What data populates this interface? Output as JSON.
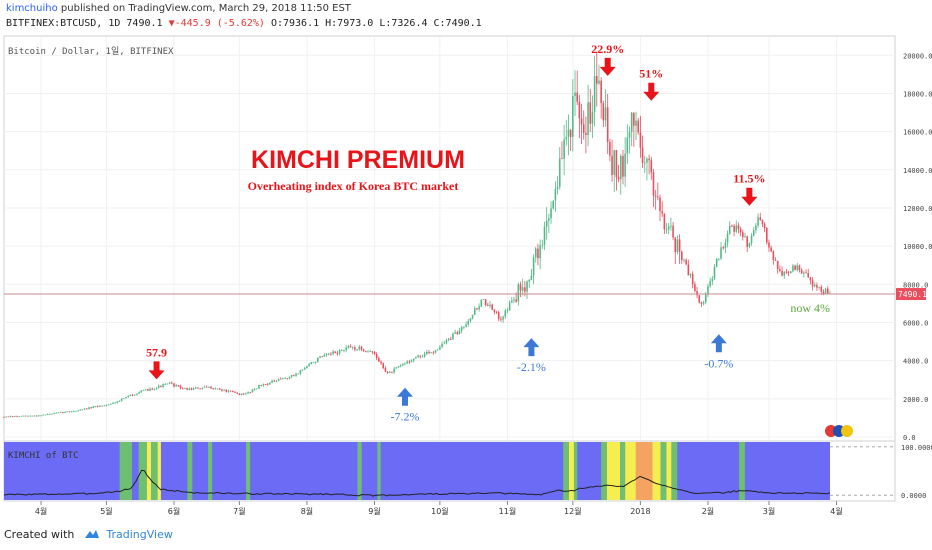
{
  "header": {
    "author": "kimchuiho",
    "published_text": "published on TradingView.com, March 29, 2018 11:50 EST",
    "symbol_line": "BITFINEX:BTCUSD, 1D 7490.1",
    "change_arrow": "▼",
    "change_text": "-445.9 (-5.62%)",
    "ohlc_text": "O:7936.1 H:7973.0 L:7326.4 C:7490.1"
  },
  "footer": {
    "created_with": "Created with",
    "brand": "TradingView"
  },
  "colors": {
    "up": "#53b987",
    "down": "#eb4d5c",
    "annotation_red": "#e8141a",
    "annotation_blue": "#3c78d8",
    "annotation_green": "#5aa83c",
    "zone_blue": "#6b6bf5",
    "zone_green": "#6fbf73",
    "zone_yellow": "#f6ee4e",
    "zone_orange": "#f4a460",
    "price_line": "#c98a8a"
  },
  "chart_data": {
    "type": "candlestick",
    "series_label": "Bitcoin / Dollar, 1일, BITFINEX",
    "title": "KIMCHI PREMIUM",
    "subtitle": "Overheating index of Korea BTC market",
    "x_labels": [
      "4월",
      "5월",
      "6월",
      "7월",
      "8월",
      "9월",
      "10월",
      "11월",
      "12월",
      "2018",
      "2월",
      "3월",
      "4월"
    ],
    "y_ticks": [
      "20000.0",
      "18000.0",
      "16000.0",
      "14000.0",
      "12000.0",
      "10000.0",
      "8000.0",
      "6000.0",
      "4000.0",
      "2000.0",
      "0.0"
    ],
    "ylim": [
      0,
      20800
    ],
    "last_price": "7490.1",
    "last_price_value": 7490.1,
    "price_waypoints": [
      {
        "t": 0,
        "p": 1050
      },
      {
        "t": 0.04,
        "p": 1120
      },
      {
        "t": 0.09,
        "p": 1400
      },
      {
        "t": 0.13,
        "p": 1750
      },
      {
        "t": 0.16,
        "p": 2300
      },
      {
        "t": 0.2,
        "p": 2800
      },
      {
        "t": 0.22,
        "p": 2500
      },
      {
        "t": 0.25,
        "p": 2600
      },
      {
        "t": 0.29,
        "p": 2200
      },
      {
        "t": 0.31,
        "p": 2700
      },
      {
        "t": 0.35,
        "p": 3200
      },
      {
        "t": 0.38,
        "p": 4100
      },
      {
        "t": 0.42,
        "p": 4700
      },
      {
        "t": 0.445,
        "p": 4500
      },
      {
        "t": 0.465,
        "p": 3300
      },
      {
        "t": 0.49,
        "p": 4000
      },
      {
        "t": 0.52,
        "p": 4500
      },
      {
        "t": 0.55,
        "p": 5500
      },
      {
        "t": 0.58,
        "p": 7200
      },
      {
        "t": 0.6,
        "p": 6200
      },
      {
        "t": 0.63,
        "p": 8000
      },
      {
        "t": 0.65,
        "p": 10000
      },
      {
        "t": 0.67,
        "p": 13500
      },
      {
        "t": 0.69,
        "p": 17500
      },
      {
        "t": 0.7,
        "p": 15500
      },
      {
        "t": 0.72,
        "p": 19500
      },
      {
        "t": 0.735,
        "p": 14500
      },
      {
        "t": 0.75,
        "p": 13800
      },
      {
        "t": 0.76,
        "p": 17000
      },
      {
        "t": 0.78,
        "p": 14000
      },
      {
        "t": 0.8,
        "p": 11500
      },
      {
        "t": 0.83,
        "p": 8500
      },
      {
        "t": 0.845,
        "p": 6800
      },
      {
        "t": 0.86,
        "p": 8800
      },
      {
        "t": 0.88,
        "p": 11200
      },
      {
        "t": 0.9,
        "p": 10200
      },
      {
        "t": 0.915,
        "p": 11400
      },
      {
        "t": 0.94,
        "p": 8500
      },
      {
        "t": 0.96,
        "p": 8900
      },
      {
        "t": 0.985,
        "p": 7800
      },
      {
        "t": 1,
        "p": 7490
      }
    ],
    "annotations": [
      {
        "text": "57.9",
        "color": "red",
        "direction": "down",
        "date": "2017-05-24",
        "price": 2600
      },
      {
        "text": "-7.2%",
        "color": "blue",
        "direction": "up",
        "date": "2017-09-15",
        "price": 3000
      },
      {
        "text": "-2.1%",
        "color": "blue",
        "direction": "up",
        "date": "2017-11-12",
        "price": 5600
      },
      {
        "text": "22.9%",
        "color": "red",
        "direction": "down",
        "date": "2017-12-17",
        "price": 18500
      },
      {
        "text": "51%",
        "color": "red",
        "direction": "down",
        "date": "2018-01-06",
        "price": 17200
      },
      {
        "text": "-0.7%",
        "color": "blue",
        "direction": "up",
        "date": "2018-02-06",
        "price": 5800
      },
      {
        "text": "11.5%",
        "color": "red",
        "direction": "down",
        "date": "2018-02-20",
        "price": 11700
      },
      {
        "text": "now 4%",
        "color": "green",
        "direction": "none",
        "date": "2018-03-29",
        "price": 7490
      }
    ],
    "indicator": {
      "label": "KIMCHI of BTC",
      "y_ticks": [
        "100.0000",
        "0.0000"
      ],
      "ylim": [
        -10,
        110
      ],
      "zones": [
        {
          "start": 0.14,
          "end": 0.155,
          "color": "green"
        },
        {
          "start": 0.163,
          "end": 0.173,
          "color": "green"
        },
        {
          "start": 0.173,
          "end": 0.178,
          "color": "yellow"
        },
        {
          "start": 0.178,
          "end": 0.186,
          "color": "green"
        },
        {
          "start": 0.186,
          "end": 0.19,
          "color": "yellow"
        },
        {
          "start": 0.222,
          "end": 0.228,
          "color": "green"
        },
        {
          "start": 0.247,
          "end": 0.252,
          "color": "green"
        },
        {
          "start": 0.293,
          "end": 0.298,
          "color": "green"
        },
        {
          "start": 0.428,
          "end": 0.433,
          "color": "green"
        },
        {
          "start": 0.452,
          "end": 0.456,
          "color": "green"
        },
        {
          "start": 0.677,
          "end": 0.684,
          "color": "green"
        },
        {
          "start": 0.684,
          "end": 0.69,
          "color": "yellow"
        },
        {
          "start": 0.69,
          "end": 0.694,
          "color": "green"
        },
        {
          "start": 0.723,
          "end": 0.73,
          "color": "green"
        },
        {
          "start": 0.73,
          "end": 0.746,
          "color": "yellow"
        },
        {
          "start": 0.746,
          "end": 0.752,
          "color": "green"
        },
        {
          "start": 0.752,
          "end": 0.765,
          "color": "yellow"
        },
        {
          "start": 0.765,
          "end": 0.785,
          "color": "orange"
        },
        {
          "start": 0.785,
          "end": 0.795,
          "color": "yellow"
        },
        {
          "start": 0.795,
          "end": 0.802,
          "color": "green"
        },
        {
          "start": 0.802,
          "end": 0.808,
          "color": "yellow"
        },
        {
          "start": 0.808,
          "end": 0.815,
          "color": "green"
        },
        {
          "start": 0.89,
          "end": 0.897,
          "color": "green"
        }
      ],
      "line": [
        {
          "t": 0,
          "v": 1
        },
        {
          "t": 0.05,
          "v": 2
        },
        {
          "t": 0.1,
          "v": 3
        },
        {
          "t": 0.14,
          "v": 8
        },
        {
          "t": 0.155,
          "v": 15
        },
        {
          "t": 0.168,
          "v": 55
        },
        {
          "t": 0.178,
          "v": 30
        },
        {
          "t": 0.19,
          "v": 12
        },
        {
          "t": 0.23,
          "v": 5
        },
        {
          "t": 0.3,
          "v": 3
        },
        {
          "t": 0.4,
          "v": 2
        },
        {
          "t": 0.45,
          "v": -1
        },
        {
          "t": 0.5,
          "v": 2
        },
        {
          "t": 0.6,
          "v": 4
        },
        {
          "t": 0.65,
          "v": 1
        },
        {
          "t": 0.67,
          "v": 10
        },
        {
          "t": 0.685,
          "v": 8
        },
        {
          "t": 0.7,
          "v": 15
        },
        {
          "t": 0.73,
          "v": 20
        },
        {
          "t": 0.75,
          "v": 18
        },
        {
          "t": 0.77,
          "v": 38
        },
        {
          "t": 0.79,
          "v": 25
        },
        {
          "t": 0.81,
          "v": 15
        },
        {
          "t": 0.84,
          "v": 3
        },
        {
          "t": 0.87,
          "v": 5
        },
        {
          "t": 0.895,
          "v": 10
        },
        {
          "t": 0.92,
          "v": 5
        },
        {
          "t": 0.96,
          "v": 4
        },
        {
          "t": 1,
          "v": 4
        }
      ]
    }
  }
}
